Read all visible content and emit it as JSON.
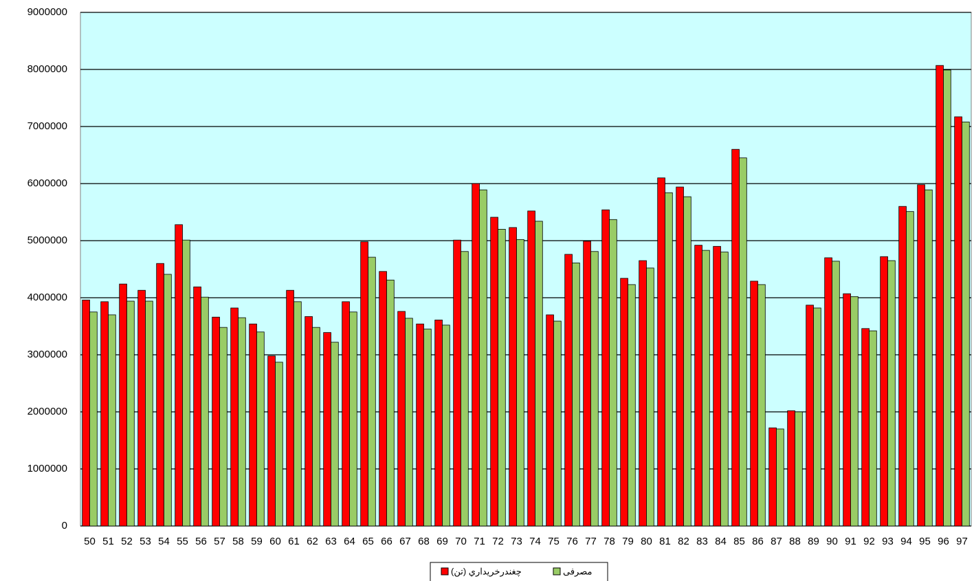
{
  "chart_data": {
    "type": "bar",
    "categories": [
      "50",
      "51",
      "52",
      "53",
      "54",
      "55",
      "56",
      "57",
      "58",
      "59",
      "60",
      "61",
      "62",
      "63",
      "64",
      "65",
      "66",
      "67",
      "68",
      "69",
      "70",
      "71",
      "72",
      "73",
      "74",
      "75",
      "76",
      "77",
      "78",
      "79",
      "80",
      "81",
      "82",
      "83",
      "84",
      "85",
      "86",
      "87",
      "88",
      "89",
      "90",
      "91",
      "92",
      "93",
      "94",
      "95",
      "96",
      "97"
    ],
    "series": [
      {
        "name": "چغندرخريداري (تن)",
        "color": "#ff0000",
        "values": [
          3960000,
          3930000,
          4240000,
          4130000,
          4600000,
          5280000,
          4190000,
          3660000,
          3820000,
          3540000,
          2980000,
          4130000,
          3670000,
          3390000,
          3930000,
          4980000,
          4460000,
          3760000,
          3540000,
          3610000,
          5010000,
          6000000,
          5410000,
          5230000,
          5520000,
          3700000,
          4760000,
          4990000,
          5540000,
          4340000,
          4650000,
          6100000,
          5940000,
          4920000,
          4900000,
          6600000,
          4290000,
          1720000,
          2020000,
          3870000,
          4700000,
          4070000,
          3460000,
          4720000,
          5600000,
          5980000,
          8070000,
          7170000
        ]
      },
      {
        "name": "مصرفی",
        "color": "#99cc66",
        "values": [
          3750000,
          3700000,
          3940000,
          3940000,
          4410000,
          5010000,
          4010000,
          3480000,
          3650000,
          3400000,
          2870000,
          3930000,
          3480000,
          3220000,
          3750000,
          4710000,
          4310000,
          3640000,
          3450000,
          3520000,
          4810000,
          5890000,
          5200000,
          5020000,
          5340000,
          3590000,
          4610000,
          4810000,
          5370000,
          4230000,
          4520000,
          5840000,
          5770000,
          4830000,
          4800000,
          6450000,
          4230000,
          1700000,
          2000000,
          3820000,
          4640000,
          4020000,
          3420000,
          4650000,
          5510000,
          5890000,
          7990000,
          7080000
        ]
      }
    ],
    "ylim": [
      0,
      9000000
    ],
    "yticks": [
      0,
      1000000,
      2000000,
      3000000,
      4000000,
      5000000,
      6000000,
      7000000,
      8000000,
      9000000
    ],
    "grid": true,
    "plot_background": "#ccffff",
    "legend": "bottom"
  }
}
